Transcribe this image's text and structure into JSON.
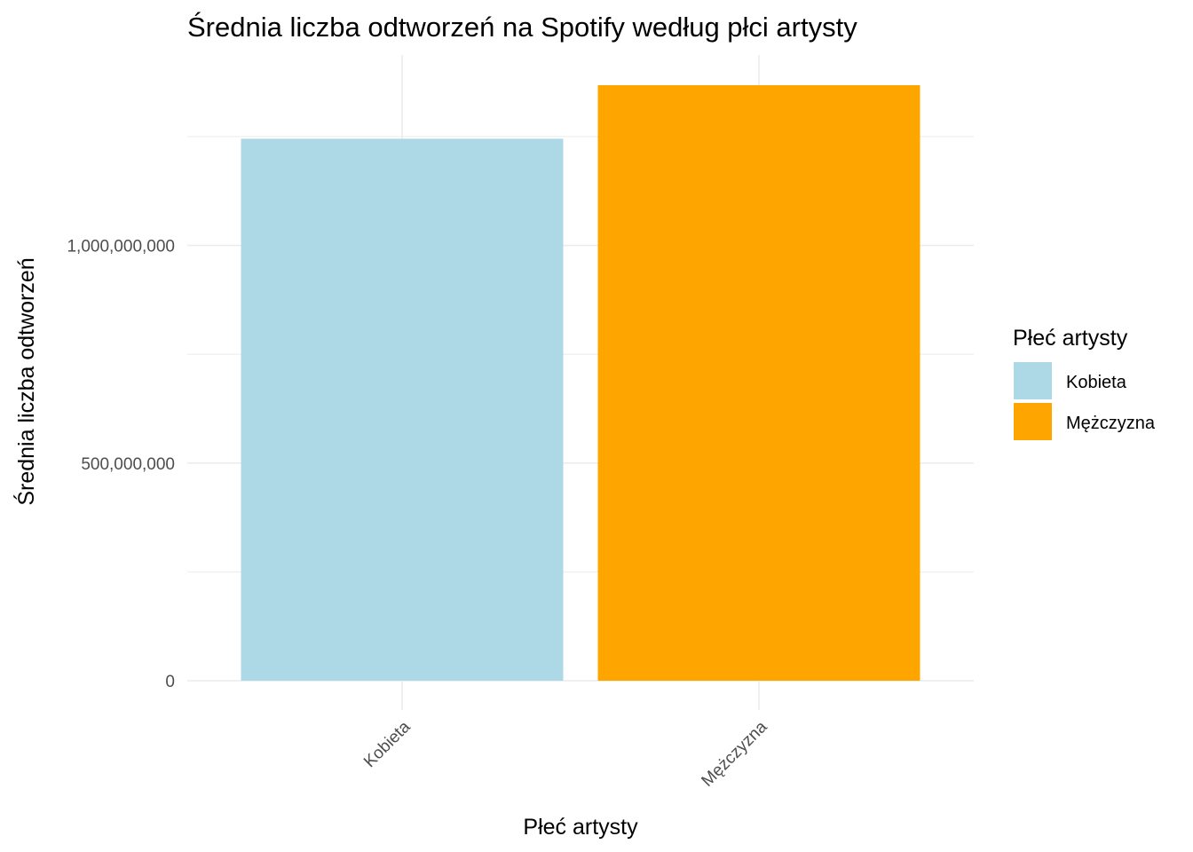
{
  "chart_data": {
    "type": "bar",
    "title": "Średnia liczba odtworzeń na Spotify według płci artysty",
    "xlabel": "Płeć artysty",
    "ylabel": "Średnia liczba odtworzeń",
    "categories": [
      "Kobieta",
      "Mężczyzna"
    ],
    "values": [
      1245000000,
      1368000000
    ],
    "colors": [
      "#add8e6",
      "#ffa500"
    ],
    "ylim": [
      0,
      1430000000
    ],
    "yticks": [
      0,
      500000000,
      1000000000
    ],
    "ytick_labels": [
      "0",
      "500,000,000",
      "1,000,000,000"
    ],
    "y_minor_gridlines": [
      250000000,
      750000000,
      1250000000
    ],
    "grid": true,
    "legend": {
      "title": "Płeć artysty",
      "position": "right",
      "items": [
        {
          "label": "Kobieta",
          "color": "#add8e6"
        },
        {
          "label": "Mężczyzna",
          "color": "#ffa500"
        }
      ]
    }
  }
}
